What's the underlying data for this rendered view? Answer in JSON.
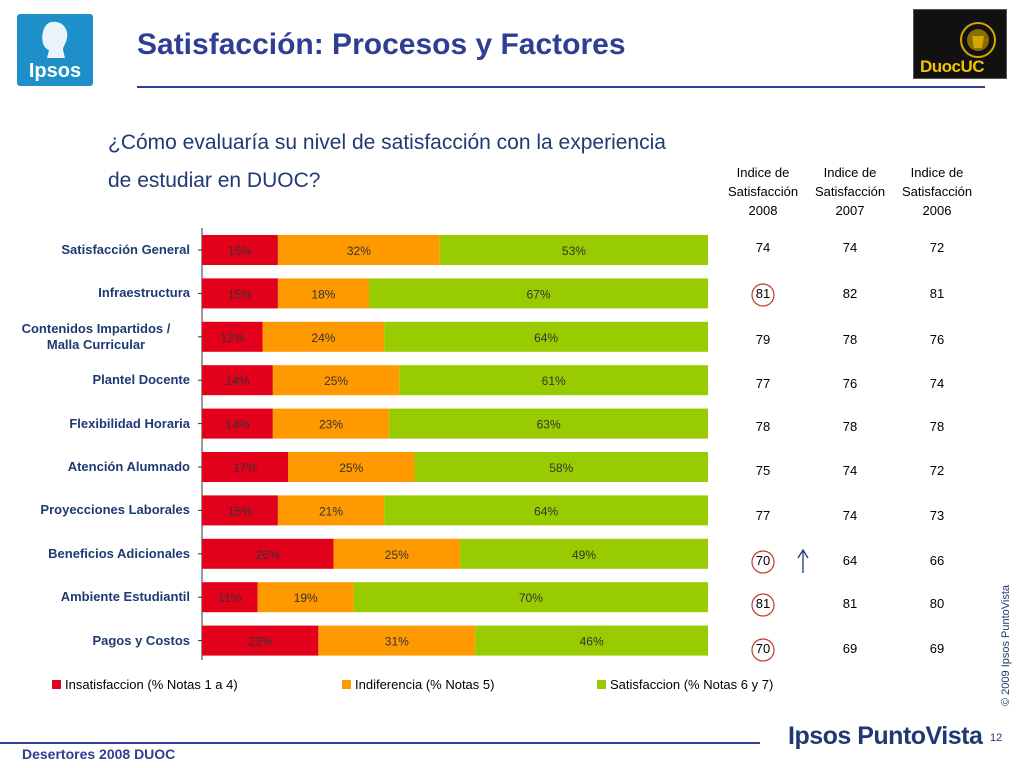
{
  "header": {
    "title": "Satisfacción: Procesos y Factores",
    "left_logo_text": "Ipsos",
    "right_logo_text": "DuocUC",
    "colors": {
      "title": "#2e3e93",
      "ipsos_blue": "#1f8fc9"
    }
  },
  "question": {
    "line1": "¿Cómo evaluaría su nivel de satisfacción con la experiencia",
    "line2": "de estudiar en DUOC?"
  },
  "index_headers": [
    {
      "l1": "Indice de",
      "l2": "Satisfacción",
      "l3": "2008"
    },
    {
      "l1": "Indice de",
      "l2": "Satisfacción",
      "l3": "2007"
    },
    {
      "l1": "Indice de",
      "l2": "Satisfacción",
      "l3": "2006"
    }
  ],
  "chart_data": {
    "type": "bar",
    "orientation": "horizontal",
    "stacked": true,
    "percent_stacked": true,
    "categories": [
      "Satisfacción General",
      "Infraestructura",
      "Contenidos Impartidos / Malla Curricular",
      "Plantel Docente",
      "Flexibilidad Horaria",
      "Atención Alumnado",
      "Proyecciones Laborales",
      "Beneficios Adicionales",
      "Ambiente Estudiantil",
      "Pagos y Costos"
    ],
    "category_lines": [
      [
        "Satisfacción General"
      ],
      [
        "Infraestructura"
      ],
      [
        "Contenidos Impartidos /",
        "Malla Curricular"
      ],
      [
        "Plantel Docente"
      ],
      [
        "Flexibilidad Horaria"
      ],
      [
        "Atención Alumnado"
      ],
      [
        "Proyecciones Laborales"
      ],
      [
        "Beneficios Adicionales"
      ],
      [
        "Ambiente Estudiantil"
      ],
      [
        "Pagos y Costos"
      ]
    ],
    "series": [
      {
        "name": "Insatisfaccion (% Notas 1 a 4)",
        "color": "#e3001b",
        "values": [
          15,
          15,
          12,
          14,
          14,
          17,
          15,
          26,
          11,
          23
        ]
      },
      {
        "name": "Indiferencia (% Notas 5)",
        "color": "#ff9900",
        "values": [
          32,
          18,
          24,
          25,
          23,
          25,
          21,
          25,
          19,
          31
        ]
      },
      {
        "name": "Satisfaccion (% Notas 6 y 7)",
        "color": "#99cc00",
        "values": [
          53,
          67,
          64,
          61,
          63,
          58,
          64,
          49,
          70,
          46
        ]
      }
    ],
    "value_suffix": "%",
    "xlim": [
      0,
      100
    ],
    "legend": "bottom",
    "grid": false
  },
  "index_table": {
    "y2008": [
      74,
      81,
      79,
      77,
      78,
      75,
      77,
      70,
      81,
      70
    ],
    "y2007": [
      74,
      82,
      78,
      76,
      78,
      74,
      74,
      64,
      81,
      69
    ],
    "y2006": [
      72,
      81,
      76,
      74,
      78,
      72,
      73,
      66,
      80,
      69
    ],
    "circled_2008_rows": [
      1,
      7,
      8,
      9
    ],
    "up_arrow_rows": [
      7
    ],
    "circle_color": "#c0392b"
  },
  "footer": {
    "left": "Desertores 2008 DUOC",
    "brand": "Ipsos PuntoVista",
    "page": "12",
    "copyright": "© 2009 Ipsos PuntoVista"
  }
}
